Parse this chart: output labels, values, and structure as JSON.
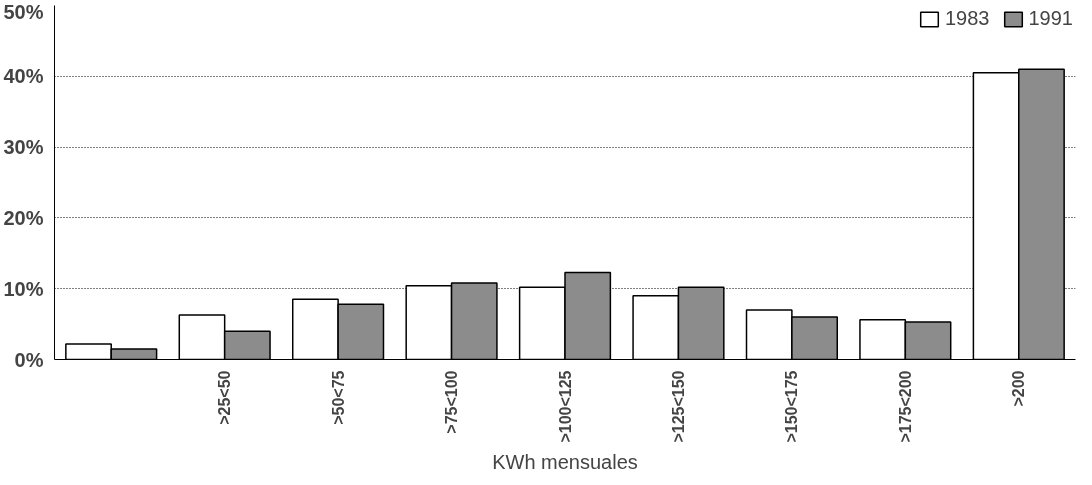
{
  "chart_data": {
    "type": "bar",
    "xlabel": "KWh mensuales",
    "categories": [
      null,
      ">25<50",
      ">50<75",
      ">75<100",
      ">100<125",
      ">125<150",
      ">150<175",
      ">175<200",
      ">200"
    ],
    "series": [
      {
        "name": "1983",
        "color": "#ffffff",
        "values": [
          2.2,
          6.3,
          8.5,
          10.4,
          10.2,
          9.0,
          7.0,
          5.6,
          40.5
        ]
      },
      {
        "name": "1991",
        "color": "#8c8c8c",
        "values": [
          1.5,
          4.0,
          7.8,
          10.8,
          12.3,
          10.2,
          6.0,
          5.3,
          41.0
        ]
      }
    ],
    "ylim": [
      0,
      50
    ],
    "yticks": [
      {
        "value": 0,
        "label": "0%"
      },
      {
        "value": 10,
        "label": "10%"
      },
      {
        "value": 20,
        "label": "20%"
      },
      {
        "value": 30,
        "label": "30%"
      },
      {
        "value": 40,
        "label": "40%"
      },
      {
        "value": 50,
        "label": "50%"
      }
    ],
    "grid": "y",
    "legend": "top right"
  }
}
